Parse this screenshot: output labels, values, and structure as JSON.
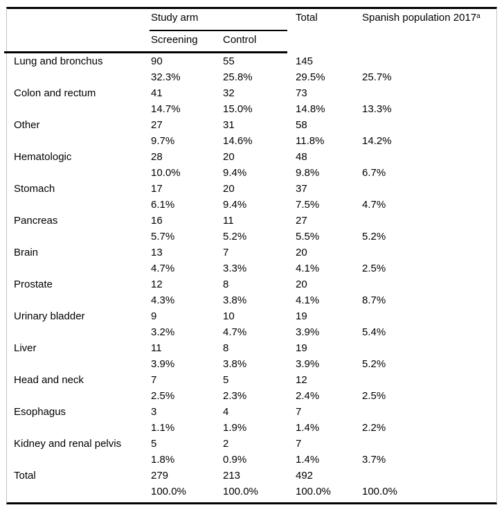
{
  "table": {
    "column_headers": {
      "study_arm": "Study arm",
      "screening": "Screening",
      "control": "Control",
      "total": "Total",
      "spanish_population": "Spanish population 2017",
      "spanish_population_footnote_marker": "a"
    },
    "rows": [
      {
        "site": "Lung and bronchus",
        "screening_n": "90",
        "control_n": "55",
        "total_n": "145",
        "screening_pct": "32.3%",
        "control_pct": "25.8%",
        "total_pct": "29.5%",
        "spanish_pct": "25.7%"
      },
      {
        "site": "Colon and rectum",
        "screening_n": "41",
        "control_n": "32",
        "total_n": "73",
        "screening_pct": "14.7%",
        "control_pct": "15.0%",
        "total_pct": "14.8%",
        "spanish_pct": "13.3%"
      },
      {
        "site": "Other",
        "screening_n": "27",
        "control_n": "31",
        "total_n": "58",
        "screening_pct": "9.7%",
        "control_pct": "14.6%",
        "total_pct": "11.8%",
        "spanish_pct": "14.2%"
      },
      {
        "site": "Hematologic",
        "screening_n": "28",
        "control_n": "20",
        "total_n": "48",
        "screening_pct": "10.0%",
        "control_pct": "9.4%",
        "total_pct": "9.8%",
        "spanish_pct": "6.7%"
      },
      {
        "site": "Stomach",
        "screening_n": "17",
        "control_n": "20",
        "total_n": "37",
        "screening_pct": "6.1%",
        "control_pct": "9.4%",
        "total_pct": "7.5%",
        "spanish_pct": "4.7%"
      },
      {
        "site": "Pancreas",
        "screening_n": "16",
        "control_n": "11",
        "total_n": "27",
        "screening_pct": "5.7%",
        "control_pct": "5.2%",
        "total_pct": "5.5%",
        "spanish_pct": "5.2%"
      },
      {
        "site": "Brain",
        "screening_n": "13",
        "control_n": "7",
        "total_n": "20",
        "screening_pct": "4.7%",
        "control_pct": "3.3%",
        "total_pct": "4.1%",
        "spanish_pct": "2.5%"
      },
      {
        "site": "Prostate",
        "screening_n": "12",
        "control_n": "8",
        "total_n": "20",
        "screening_pct": "4.3%",
        "control_pct": "3.8%",
        "total_pct": "4.1%",
        "spanish_pct": "8.7%"
      },
      {
        "site": "Urinary bladder",
        "screening_n": "9",
        "control_n": "10",
        "total_n": "19",
        "screening_pct": "3.2%",
        "control_pct": "4.7%",
        "total_pct": "3.9%",
        "spanish_pct": "5.4%"
      },
      {
        "site": "Liver",
        "screening_n": "11",
        "control_n": "8",
        "total_n": "19",
        "screening_pct": "3.9%",
        "control_pct": "3.8%",
        "total_pct": "3.9%",
        "spanish_pct": "5.2%"
      },
      {
        "site": "Head and neck",
        "screening_n": "7",
        "control_n": "5",
        "total_n": "12",
        "screening_pct": "2.5%",
        "control_pct": "2.3%",
        "total_pct": "2.4%",
        "spanish_pct": "2.5%"
      },
      {
        "site": "Esophagus",
        "screening_n": "3",
        "control_n": "4",
        "total_n": "7",
        "screening_pct": "1.1%",
        "control_pct": "1.9%",
        "total_pct": "1.4%",
        "spanish_pct": "2.2%"
      },
      {
        "site": "Kidney and renal pelvis",
        "screening_n": "5",
        "control_n": "2",
        "total_n": "7",
        "screening_pct": "1.8%",
        "control_pct": "0.9%",
        "total_pct": "1.4%",
        "spanish_pct": "3.7%"
      },
      {
        "site": "Total",
        "screening_n": "279",
        "control_n": "213",
        "total_n": "492",
        "screening_pct": "100.0%",
        "control_pct": "100.0%",
        "total_pct": "100.0%",
        "spanish_pct": "100.0%"
      }
    ]
  },
  "colors": {
    "text": "#000000",
    "rule": "#000000",
    "side_border": "#c4c4c4",
    "background": "#ffffff"
  }
}
